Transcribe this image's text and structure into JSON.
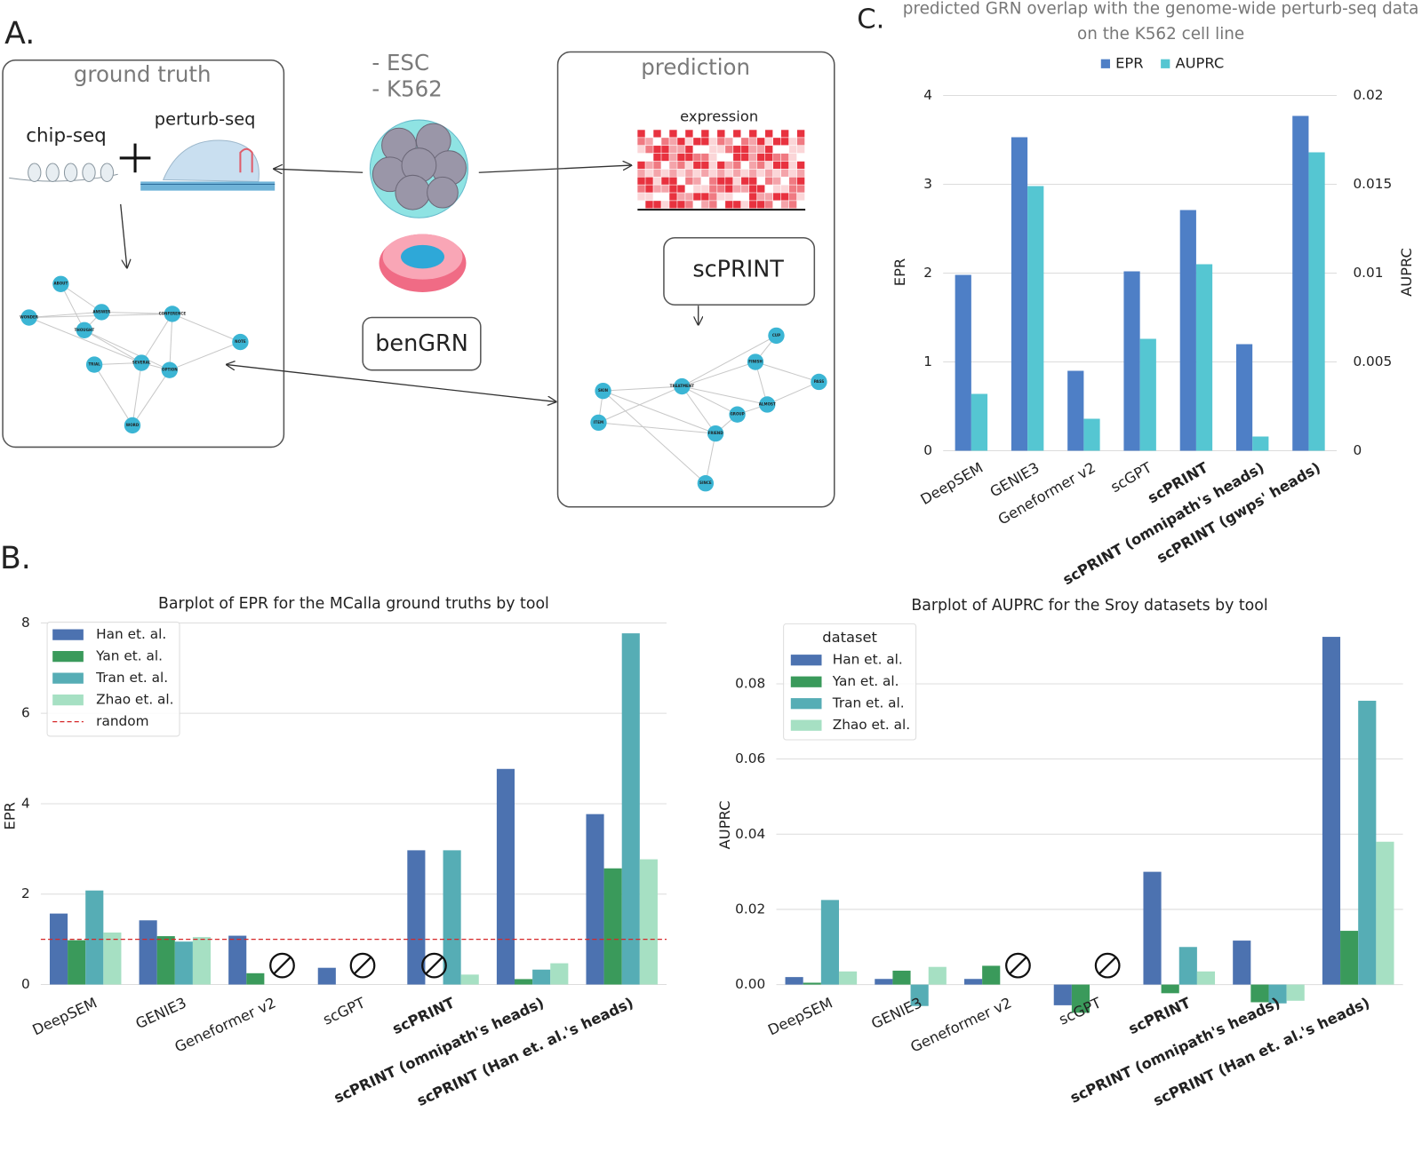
{
  "panels": {
    "a": "A.",
    "b": "B.",
    "c": "C."
  },
  "diagram": {
    "ground_truth": {
      "title": "ground truth",
      "chip": "chip-seq",
      "perturb": "perturb-seq",
      "nodes": [
        "ABOUT",
        "ANSWER",
        "WONDER",
        "CONFERENCE",
        "THOUGHT",
        "NOTE",
        "TRIAL",
        "SEVERAL",
        "OPTION",
        "WORD"
      ]
    },
    "cell_lines": [
      "- ESC",
      "- K562"
    ],
    "benchmark": "benGRN",
    "prediction": {
      "title": "prediction",
      "expression": "expression",
      "model": "scPRINT",
      "nodes": [
        "CUP",
        "FINISH",
        "PASS",
        "SKIN",
        "TREATMENT",
        "ALMOST",
        "GROUP",
        "ITEM",
        "FRIEND",
        "SINCE"
      ]
    }
  },
  "chart_data": [
    {
      "type": "bar",
      "title": "Barplot of EPR for the MCalla ground truths by tool",
      "categories": [
        "DeepSEM",
        "GENIE3",
        "Geneformer v2",
        "scGPT",
        "scPRINT",
        "scPRINT (omnipath's heads)",
        "scPRINT (Han et. al.'s heads)"
      ],
      "series": [
        {
          "name": "Han et. al.",
          "color": "#4c72b0",
          "values": [
            1.57,
            1.42,
            1.08,
            0.37,
            2.97,
            4.77,
            3.77
          ]
        },
        {
          "name": "Yan et. al.",
          "color": "#3a9a5b",
          "values": [
            0.98,
            1.07,
            0.25,
            null,
            null,
            0.12,
            2.57
          ]
        },
        {
          "name": "Tran et. al.",
          "color": "#56adb5",
          "values": [
            2.08,
            0.95,
            null,
            null,
            2.97,
            0.33,
            7.77
          ]
        },
        {
          "name": "Zhao et. al.",
          "color": "#a6e0c3",
          "values": [
            1.15,
            1.05,
            null,
            null,
            0.22,
            0.47,
            2.77
          ]
        }
      ],
      "reference": {
        "name": "random",
        "value": 1,
        "color": "#d62728"
      },
      "ylabel": "EPR",
      "ylim": [
        0,
        8
      ],
      "yticks": [
        0,
        2,
        4,
        6,
        8
      ],
      "grid": true,
      "legend": "upper left"
    },
    {
      "type": "bar",
      "title": "Barplot of AUPRC for the Sroy datasets by tool",
      "categories": [
        "DeepSEM",
        "GENIE3",
        "Geneformer v2",
        "scGPT",
        "scPRINT",
        "scPRINT (omnipath's heads)",
        "scPRINT (Han et. al.'s heads)"
      ],
      "series": [
        {
          "name": "Han et. al.",
          "color": "#4c72b0",
          "values": [
            0.002,
            0.0015,
            0.0015,
            -0.0055,
            0.03,
            0.0117,
            0.0925
          ]
        },
        {
          "name": "Yan et. al.",
          "color": "#3a9a5b",
          "values": [
            0.0005,
            0.0037,
            0.005,
            -0.0075,
            -0.0023,
            -0.0047,
            0.0143
          ]
        },
        {
          "name": "Tran et. al.",
          "color": "#56adb5",
          "values": [
            0.0225,
            -0.0057,
            null,
            null,
            0.01,
            -0.005,
            0.0755
          ]
        },
        {
          "name": "Zhao et. al.",
          "color": "#a6e0c3",
          "values": [
            0.0035,
            0.0047,
            null,
            null,
            0.0035,
            -0.0043,
            0.038
          ]
        }
      ],
      "legend_title": "dataset",
      "ylabel": "AUPRC",
      "ylim": [
        -0.009,
        0.095
      ],
      "yticks": [
        {
          "value": 0,
          "label": "0.00"
        },
        0.02,
        0.04,
        0.06,
        0.08
      ],
      "grid": true,
      "legend": "upper left"
    },
    {
      "type": "bar",
      "title": "predicted GRN overlap with the genome-wide perturb-seq data on the K562 cell line",
      "categories": [
        "DeepSEM",
        "GENIE3",
        "Geneformer v2",
        "scGPT",
        "scPRINT",
        "scPRINT (omnipath's heads)",
        "scPRINT (gwps' heads)"
      ],
      "series": [
        {
          "name": "EPR",
          "color": "#4e7fc6",
          "values": [
            1.98,
            3.53,
            0.9,
            2.02,
            2.71,
            1.2,
            3.77
          ]
        },
        {
          "name": "AUPRC",
          "color": "#55c6d2",
          "axis": "y2",
          "values": [
            0.0032,
            0.0149,
            0.0018,
            0.0063,
            0.0105,
            0.0008,
            0.0168
          ]
        }
      ],
      "ylabel": "EPR",
      "y2label": "AUPRC",
      "ylim": [
        0,
        4.1
      ],
      "yticks": [
        0,
        1,
        2,
        3,
        4
      ],
      "y2lim": [
        0,
        0.0205
      ],
      "y2ticks": [
        0,
        0.005,
        0.01,
        0.015,
        0.02
      ],
      "grid": true,
      "legend": "upper center"
    }
  ]
}
